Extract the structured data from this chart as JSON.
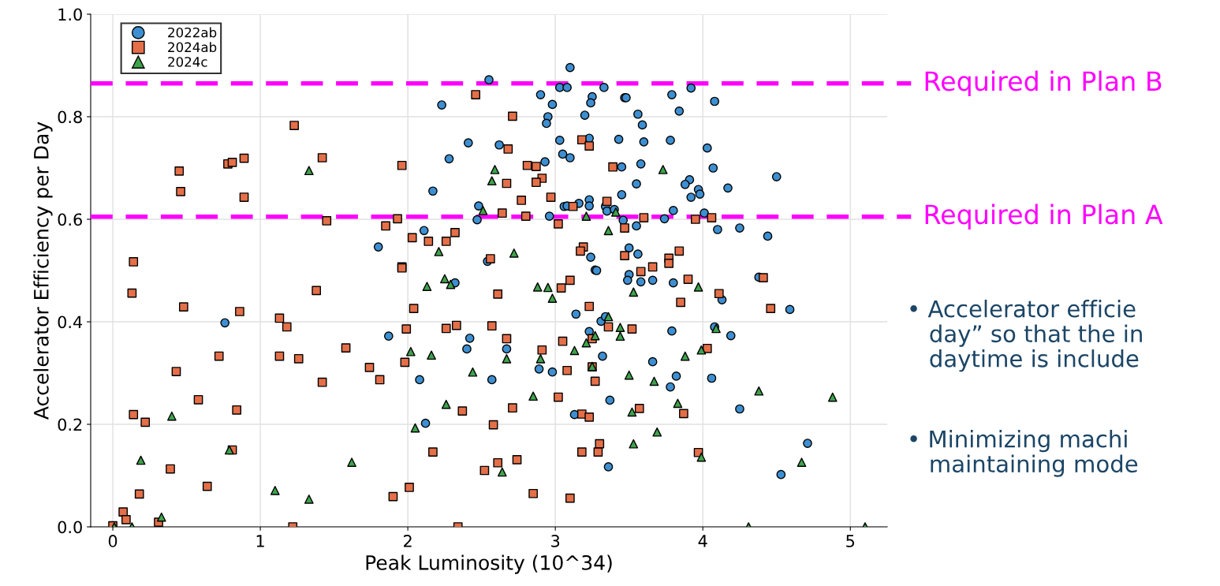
{
  "chart_data": {
    "type": "scatter",
    "xlabel": "Peak Luminosity (10^34)",
    "ylabel": "Accelerator Efficiency per Day",
    "xlim": [
      -0.15,
      5.25
    ],
    "ylim": [
      0,
      1.0
    ],
    "xticks": [
      0,
      1,
      2,
      3,
      4,
      5
    ],
    "yticks": [
      {
        "value": 0,
        "label": "0.0"
      },
      {
        "value": 0.2,
        "label": "0.2"
      },
      {
        "value": 0.4,
        "label": "0.4"
      },
      {
        "value": 0.6,
        "label": "0.6"
      },
      {
        "value": 0.8,
        "label": "0.8"
      },
      {
        "value": 1.0,
        "label": "1.0"
      }
    ],
    "grid": true,
    "legend": "top left",
    "series": [
      {
        "name": "2022ab",
        "color": "#3d8fd1",
        "marker": "circle",
        "x": [
          2.55,
          3.1,
          2.9,
          3.03,
          3.08,
          2.98,
          3.25,
          3.24,
          3.33,
          3.47,
          2.23,
          2.95,
          2.94,
          3.2,
          2.41,
          2.62,
          3.03,
          3.23,
          3.43,
          2.28,
          3.05,
          3.1,
          2.93,
          3.45,
          2.17,
          3.45,
          2.48,
          2.47,
          2.11,
          1.8,
          3.06,
          3.08,
          3.16,
          3.23,
          3.23,
          2.96,
          3.34,
          3.35,
          3.4,
          3.46,
          3.24,
          3.27,
          2.54,
          3.92,
          3.48,
          3.79,
          4.08,
          3.56,
          3.84,
          3.59,
          3.6,
          3.78,
          4.03,
          3.58,
          4.07,
          4.5,
          3.91,
          3.88,
          3.97,
          3.98,
          3.55,
          4.17,
          3.92,
          3.8,
          4.01,
          3.74,
          3.55,
          4.1,
          4.25,
          4.44,
          3.5,
          3.56,
          0.76,
          2.32,
          3.28,
          1.87,
          2.42,
          2.4,
          2.67,
          2.08,
          2.57,
          2.89,
          2.98,
          3.14,
          3.31,
          3.34,
          3.23,
          3.32,
          3.37,
          3.13,
          2.12,
          3.36,
          3.5,
          3.49,
          3.58,
          3.66,
          3.8,
          4.38,
          4.13,
          4.59,
          3.79,
          4.08,
          4.19,
          3.66,
          3.82,
          3.78,
          4.06,
          4.25,
          4.71,
          4.53
        ],
        "values": [
          0.872,
          0.896,
          0.843,
          0.857,
          0.857,
          0.824,
          0.839,
          0.827,
          0.857,
          0.837,
          0.823,
          0.8,
          0.787,
          0.803,
          0.749,
          0.745,
          0.754,
          0.758,
          0.756,
          0.718,
          0.727,
          0.72,
          0.712,
          0.702,
          0.655,
          0.648,
          0.626,
          0.599,
          0.578,
          0.546,
          0.625,
          0.626,
          0.631,
          0.638,
          0.626,
          0.606,
          0.625,
          0.616,
          0.619,
          0.598,
          0.526,
          0.501,
          0.518,
          0.856,
          0.837,
          0.843,
          0.83,
          0.805,
          0.811,
          0.784,
          0.751,
          0.754,
          0.739,
          0.708,
          0.7,
          0.683,
          0.677,
          0.668,
          0.658,
          0.649,
          0.669,
          0.661,
          0.643,
          0.617,
          0.612,
          0.601,
          0.587,
          0.58,
          0.583,
          0.567,
          0.544,
          0.532,
          0.398,
          0.476,
          0.5,
          0.372,
          0.368,
          0.347,
          0.347,
          0.287,
          0.287,
          0.308,
          0.302,
          0.415,
          0.401,
          0.41,
          0.381,
          0.333,
          0.247,
          0.219,
          0.202,
          0.117,
          0.492,
          0.481,
          0.478,
          0.481,
          0.476,
          0.487,
          0.443,
          0.424,
          0.382,
          0.39,
          0.373,
          0.322,
          0.294,
          0.273,
          0.29,
          0.23,
          0.163,
          0.102
        ]
      },
      {
        "name": "2024ab",
        "color": "#e46f48",
        "marker": "square",
        "x": [
          1.23,
          1.42,
          0.45,
          0.46,
          0.78,
          0.81,
          0.89,
          0.89,
          1.45,
          0.14,
          2.46,
          2.71,
          2.68,
          3.18,
          3.23,
          1.96,
          2.81,
          2.87,
          3.39,
          2.91,
          2.87,
          2.67,
          2.77,
          2.97,
          3.12,
          3.35,
          2.64,
          1.93,
          1.85,
          2.8,
          3.02,
          3.47,
          2.03,
          2.14,
          2.26,
          2.32,
          3.19,
          3.17,
          2.56,
          1.96,
          3.47,
          3.6,
          4.06,
          3.95,
          3.84,
          3.77,
          3.77,
          3.66,
          3.58,
          0.13,
          0.48,
          0.86,
          1.38,
          1.13,
          1.18,
          0.72,
          1.13,
          1.26,
          1.58,
          0.43,
          1.42,
          0.58,
          0.84,
          0.14,
          0.22,
          0.81,
          0.39,
          0.64,
          0.18,
          0.07,
          0.09,
          0.31,
          0.0,
          1.22,
          1.96,
          3.1,
          3.04,
          2.61,
          3.23,
          2.04,
          1.99,
          2.26,
          2.33,
          2.57,
          2.67,
          3.05,
          2.91,
          3.36,
          3.25,
          1.98,
          1.74,
          1.81,
          3.08,
          3.25,
          3.27,
          3.02,
          2.71,
          2.37,
          2.58,
          3.18,
          3.23,
          2.17,
          3.3,
          3.29,
          3.18,
          2.61,
          2.74,
          2.52,
          2.01,
          1.9,
          2.85,
          3.1,
          2.34,
          3.9,
          4.11,
          4.41,
          4.46,
          3.85,
          3.52,
          4.03,
          3.57,
          3.87,
          3.97
        ],
        "values": [
          0.783,
          0.72,
          0.694,
          0.654,
          0.708,
          0.711,
          0.719,
          0.643,
          0.597,
          0.517,
          0.843,
          0.801,
          0.737,
          0.755,
          0.743,
          0.705,
          0.705,
          0.703,
          0.702,
          0.68,
          0.672,
          0.67,
          0.637,
          0.643,
          0.625,
          0.635,
          0.612,
          0.601,
          0.587,
          0.606,
          0.591,
          0.583,
          0.564,
          0.557,
          0.557,
          0.574,
          0.546,
          0.538,
          0.523,
          0.507,
          0.529,
          0.603,
          0.603,
          0.6,
          0.538,
          0.524,
          0.514,
          0.507,
          0.498,
          0.456,
          0.429,
          0.42,
          0.461,
          0.407,
          0.39,
          0.333,
          0.333,
          0.328,
          0.349,
          0.303,
          0.282,
          0.248,
          0.228,
          0.219,
          0.204,
          0.15,
          0.113,
          0.079,
          0.064,
          0.029,
          0.014,
          0.009,
          0.002,
          0.0,
          0.505,
          0.481,
          0.466,
          0.454,
          0.43,
          0.426,
          0.386,
          0.387,
          0.393,
          0.392,
          0.367,
          0.362,
          0.345,
          0.39,
          0.367,
          0.321,
          0.311,
          0.287,
          0.305,
          0.312,
          0.284,
          0.253,
          0.232,
          0.226,
          0.199,
          0.22,
          0.214,
          0.146,
          0.162,
          0.146,
          0.146,
          0.125,
          0.131,
          0.11,
          0.077,
          0.059,
          0.065,
          0.056,
          0.0,
          0.483,
          0.455,
          0.486,
          0.426,
          0.438,
          0.386,
          0.348,
          0.231,
          0.221,
          0.145
        ]
      },
      {
        "name": "2024c",
        "color": "#3ea34c",
        "marker": "triangle",
        "x": [
          1.33,
          2.59,
          2.57,
          2.51,
          3.21,
          3.41,
          3.36,
          2.21,
          2.72,
          3.73,
          0.4,
          0.19,
          0.79,
          1.62,
          1.1,
          1.33,
          0.33,
          0.01,
          0.13,
          2.25,
          2.29,
          2.13,
          2.88,
          2.95,
          2.98,
          3.36,
          3.27,
          3.21,
          3.13,
          2.02,
          2.16,
          2.67,
          2.9,
          3.25,
          2.44,
          2.85,
          2.26,
          2.05,
          2.64,
          3.53,
          3.97,
          4.09,
          3.44,
          3.44,
          3.99,
          3.88,
          3.5,
          3.67,
          4.38,
          4.88,
          3.83,
          3.52,
          3.69,
          3.53,
          3.99,
          4.67,
          4.31,
          5.1
        ],
        "values": [
          0.695,
          0.697,
          0.675,
          0.617,
          0.606,
          0.614,
          0.578,
          0.537,
          0.534,
          0.697,
          0.216,
          0.13,
          0.15,
          0.126,
          0.071,
          0.054,
          0.019,
          0.0,
          0.0,
          0.484,
          0.473,
          0.469,
          0.468,
          0.467,
          0.446,
          0.41,
          0.373,
          0.359,
          0.344,
          0.342,
          0.335,
          0.328,
          0.328,
          0.313,
          0.302,
          0.255,
          0.239,
          0.193,
          0.107,
          0.458,
          0.468,
          0.387,
          0.389,
          0.372,
          0.345,
          0.333,
          0.296,
          0.284,
          0.265,
          0.253,
          0.241,
          0.224,
          0.185,
          0.162,
          0.136,
          0.126,
          0.0,
          0.0
        ]
      }
    ],
    "ref_lines": [
      {
        "axis": "y",
        "value": 0.865,
        "label": "Required in Plan B",
        "color": "#ff00ff",
        "line_style": "dashed"
      },
      {
        "axis": "y",
        "value": 0.605,
        "label": "Required in Plan A",
        "color": "#ff00ff",
        "line_style": "dashed"
      }
    ],
    "annotations": [
      "• Accelerator efficie\n   day” so that the in\n   daytime is include",
      "• Minimizing machi\n   maintaining mode"
    ]
  }
}
